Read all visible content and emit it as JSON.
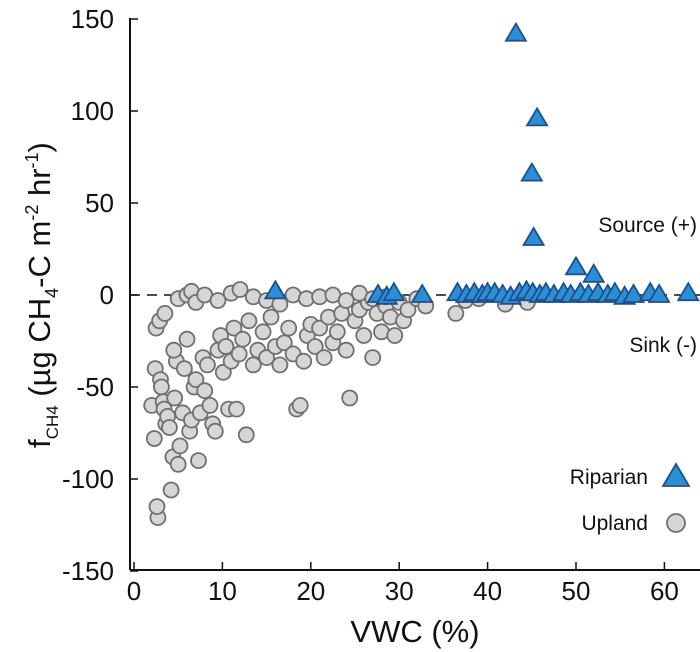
{
  "chart_data": {
    "type": "scatter",
    "xlabel": "VWC (%)",
    "ylabel": {
      "prefix": "f",
      "prefix_sub": "CH4",
      "open": " (µg CH",
      "sub": "4",
      "mid": "-C m",
      "sup1": "-2",
      "mid2": " hr",
      "sup2": "-1",
      "close": ")"
    },
    "xlim": [
      0,
      64
    ],
    "ylim": [
      -150,
      150
    ],
    "x_ticks": [
      0,
      10,
      20,
      30,
      40,
      50,
      60
    ],
    "y_ticks": [
      -150,
      -100,
      -50,
      0,
      50,
      100,
      150
    ],
    "x_tick_labels": [
      "0",
      "10",
      "20",
      "30",
      "40",
      "50",
      "60"
    ],
    "y_tick_labels": [
      "-150",
      "-100",
      "-50",
      "0",
      "50",
      "100",
      "150"
    ],
    "zero_line": "dashed",
    "annotations": {
      "source": "Source (+)",
      "sink": "Sink (-)"
    },
    "legend": {
      "placement": "bottom-right",
      "entries": [
        "Riparian",
        "Upland"
      ]
    },
    "series": [
      {
        "name": "Riparian",
        "marker": "triangle",
        "color": "#2b8fd6",
        "edge": "#1f4f8a",
        "points": [
          [
            16.0,
            2
          ],
          [
            27.6,
            0
          ],
          [
            28.6,
            -1
          ],
          [
            29.4,
            1
          ],
          [
            32.6,
            0
          ],
          [
            36.6,
            1
          ],
          [
            37.6,
            0
          ],
          [
            38.5,
            1
          ],
          [
            39.4,
            0
          ],
          [
            40.0,
            1
          ],
          [
            40.8,
            1
          ],
          [
            41.7,
            0
          ],
          [
            42.6,
            -1
          ],
          [
            43.6,
            1
          ],
          [
            44.4,
            2
          ],
          [
            45.1,
            1
          ],
          [
            45.9,
            0
          ],
          [
            46.6,
            1
          ],
          [
            47.5,
            0
          ],
          [
            48.6,
            1
          ],
          [
            49.4,
            0
          ],
          [
            50.5,
            1
          ],
          [
            51.4,
            0
          ],
          [
            52.5,
            1
          ],
          [
            53.6,
            0
          ],
          [
            54.4,
            1
          ],
          [
            55.5,
            -1
          ],
          [
            56.5,
            0
          ],
          [
            58.4,
            1
          ],
          [
            59.4,
            0
          ],
          [
            62.7,
            1
          ],
          [
            43.2,
            142
          ],
          [
            45.6,
            96
          ],
          [
            45.0,
            66
          ],
          [
            45.2,
            31
          ],
          [
            50.0,
            15
          ],
          [
            52.0,
            11
          ]
        ]
      },
      {
        "name": "Upland",
        "marker": "circle",
        "color": "#d6d6d6",
        "edge": "#6f6f6f",
        "points": [
          [
            2.0,
            -60
          ],
          [
            2.3,
            -78
          ],
          [
            2.7,
            -121
          ],
          [
            2.6,
            -115
          ],
          [
            2.4,
            -40
          ],
          [
            2.5,
            -18
          ],
          [
            2.9,
            -14
          ],
          [
            3.0,
            -46
          ],
          [
            3.1,
            -50
          ],
          [
            3.3,
            -58
          ],
          [
            3.4,
            -62
          ],
          [
            3.6,
            -70
          ],
          [
            3.8,
            -66
          ],
          [
            4.0,
            -72
          ],
          [
            4.2,
            -106
          ],
          [
            4.4,
            -88
          ],
          [
            4.6,
            -56
          ],
          [
            4.8,
            -36
          ],
          [
            4.5,
            -30
          ],
          [
            5.0,
            -92
          ],
          [
            5.2,
            -82
          ],
          [
            5.5,
            -64
          ],
          [
            5.7,
            -40
          ],
          [
            6.0,
            -24
          ],
          [
            6.3,
            -74
          ],
          [
            6.5,
            -68
          ],
          [
            6.8,
            -50
          ],
          [
            7.0,
            -46
          ],
          [
            7.3,
            -90
          ],
          [
            7.5,
            -64
          ],
          [
            7.8,
            -34
          ],
          [
            8.0,
            -52
          ],
          [
            8.3,
            -38
          ],
          [
            8.6,
            -60
          ],
          [
            8.9,
            -70
          ],
          [
            9.2,
            -74
          ],
          [
            9.5,
            -30
          ],
          [
            9.8,
            -22
          ],
          [
            10.1,
            -42
          ],
          [
            10.4,
            -28
          ],
          [
            10.7,
            -62
          ],
          [
            11.0,
            -36
          ],
          [
            11.3,
            -18
          ],
          [
            11.6,
            -62
          ],
          [
            11.9,
            -32
          ],
          [
            12.3,
            -24
          ],
          [
            12.7,
            -76
          ],
          [
            13.0,
            -14
          ],
          [
            13.5,
            -38
          ],
          [
            14.0,
            -30
          ],
          [
            14.6,
            -20
          ],
          [
            15.0,
            -34
          ],
          [
            15.5,
            -12
          ],
          [
            16.0,
            -28
          ],
          [
            16.5,
            -38
          ],
          [
            17.0,
            -26
          ],
          [
            17.5,
            -18
          ],
          [
            18.0,
            -32
          ],
          [
            18.4,
            -62
          ],
          [
            18.8,
            -60
          ],
          [
            19.2,
            -36
          ],
          [
            19.6,
            -22
          ],
          [
            20.0,
            -16
          ],
          [
            20.5,
            -28
          ],
          [
            21.0,
            -18
          ],
          [
            21.5,
            -34
          ],
          [
            22.0,
            -12
          ],
          [
            22.5,
            -26
          ],
          [
            23.0,
            -20
          ],
          [
            23.5,
            -10
          ],
          [
            24.0,
            -30
          ],
          [
            24.4,
            -56
          ],
          [
            25.0,
            -14
          ],
          [
            25.5,
            -8
          ],
          [
            26.0,
            -22
          ],
          [
            26.5,
            -4
          ],
          [
            27.0,
            -34
          ],
          [
            27.5,
            -10
          ],
          [
            28.0,
            -20
          ],
          [
            28.5,
            -6
          ],
          [
            29.0,
            -12
          ],
          [
            29.5,
            -22
          ],
          [
            30.0,
            -4
          ],
          [
            30.5,
            -14
          ],
          [
            31.0,
            -8
          ],
          [
            32.0,
            -2
          ],
          [
            33.0,
            -6
          ],
          [
            36.4,
            -10
          ],
          [
            37.5,
            -3
          ],
          [
            39.0,
            -2
          ],
          [
            42.0,
            -5
          ],
          [
            44.5,
            -4
          ],
          [
            3.5,
            -10
          ],
          [
            5.0,
            -2
          ],
          [
            6.0,
            0
          ],
          [
            6.5,
            2
          ],
          [
            7.0,
            -4
          ],
          [
            8.0,
            0
          ],
          [
            9.5,
            -3
          ],
          [
            11.0,
            1
          ],
          [
            12.0,
            3
          ],
          [
            13.5,
            -1
          ],
          [
            15.0,
            -3
          ],
          [
            16.5,
            -5
          ],
          [
            18.0,
            0
          ],
          [
            19.5,
            -2
          ],
          [
            21.0,
            -1
          ],
          [
            22.5,
            0
          ],
          [
            24.0,
            -3
          ],
          [
            25.5,
            1
          ],
          [
            27.0,
            -2
          ],
          [
            28.5,
            -1
          ]
        ]
      }
    ]
  }
}
